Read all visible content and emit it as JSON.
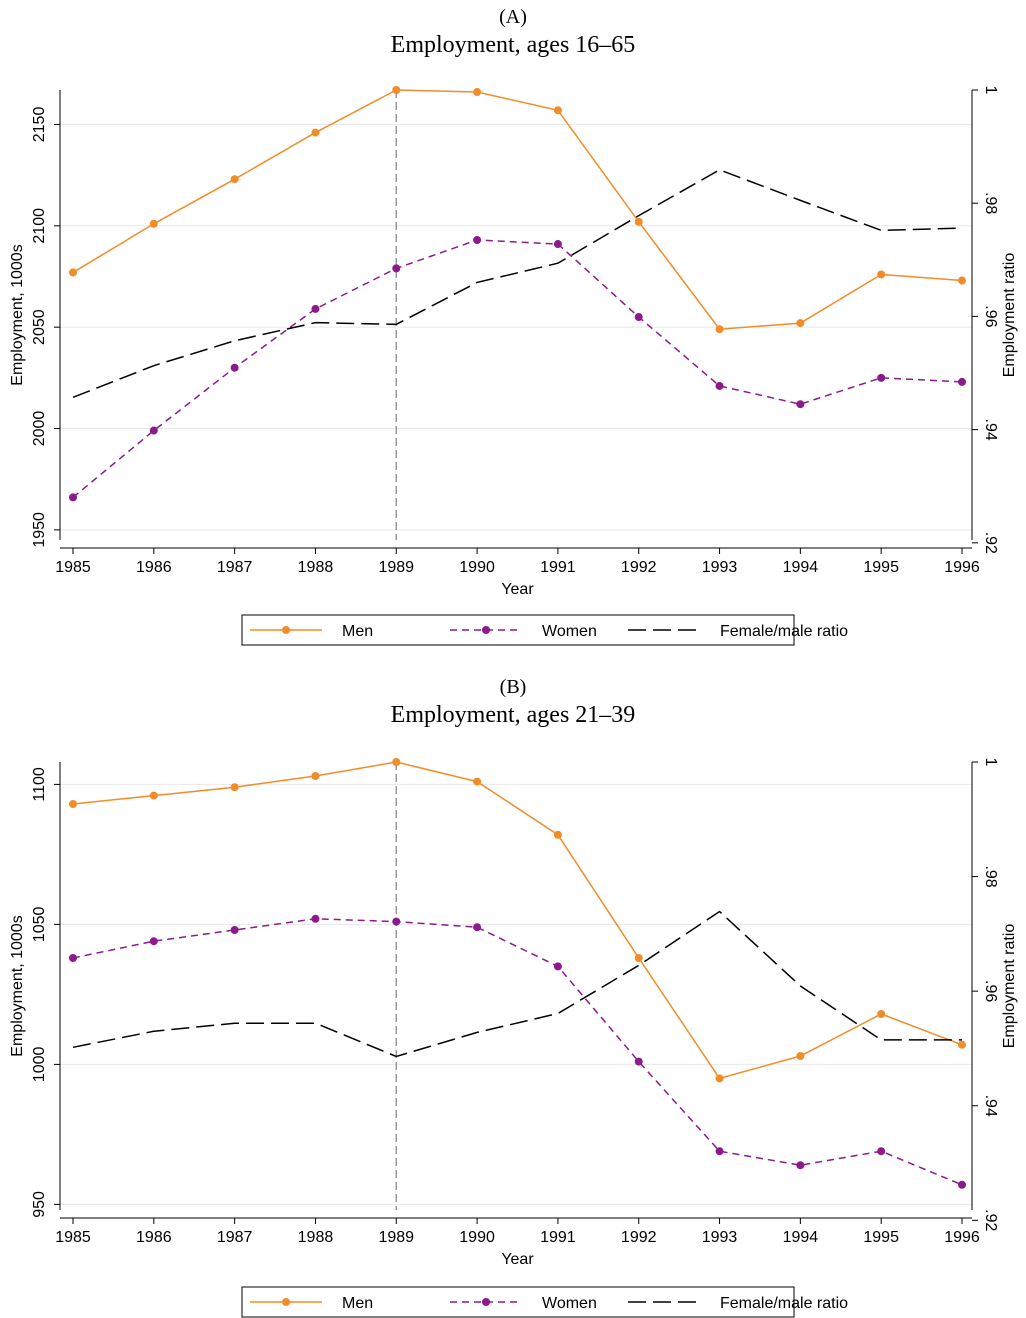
{
  "chart_data": [
    {
      "type": "line",
      "panel_label": "(A)",
      "title": "Employment, ages 16–65",
      "xlabel": "Year",
      "ylabel": "Employment, 1000s",
      "y2label": "Employment ratio",
      "x": [
        1985,
        1986,
        1987,
        1988,
        1989,
        1990,
        1991,
        1992,
        1993,
        1994,
        1995,
        1996
      ],
      "x_tick_labels": [
        "1985",
        "1986",
        "1987",
        "1988",
        "1989",
        "1990",
        "1991",
        "1992",
        "1993",
        "1994",
        "1995",
        "1996"
      ],
      "ylim": [
        1945,
        2167
      ],
      "y_ticks": [
        1950,
        2000,
        2050,
        2100,
        2150
      ],
      "y_tick_labels": [
        "1950",
        "2000",
        "2050",
        "2100",
        "2150"
      ],
      "y2lim": [
        0.9205,
        1.0
      ],
      "y2_ticks": [
        0.92,
        0.94,
        0.96,
        0.98,
        1.0
      ],
      "y2_tick_labels": [
        ".92",
        ".94",
        ".96",
        ".98",
        "1"
      ],
      "vline_x": 1989,
      "grid": true,
      "legend_position": "bottom",
      "series": [
        {
          "name": "Men",
          "axis": "left",
          "style": "solid-markers",
          "color": "#F28C28",
          "values": [
            2077,
            2101,
            2123,
            2146,
            2167,
            2166,
            2157,
            2102,
            2049,
            2052,
            2076,
            2073
          ]
        },
        {
          "name": "Women",
          "axis": "left",
          "style": "dashed-markers",
          "color": "#8B1A8B",
          "values": [
            1966,
            1999,
            2030,
            2059,
            2079,
            2093,
            2091,
            2055,
            2021,
            2012,
            2025,
            2023
          ]
        },
        {
          "name": "Female/male ratio",
          "axis": "right",
          "style": "longdash",
          "color": "#000000",
          "values": [
            0.9457,
            0.9513,
            0.9557,
            0.9589,
            0.9586,
            0.966,
            0.9694,
            0.9778,
            0.9859,
            0.9805,
            0.9752,
            0.9756
          ]
        }
      ]
    },
    {
      "type": "line",
      "panel_label": "(B)",
      "title": "Employment, ages 21–39",
      "xlabel": "Year",
      "ylabel": "Employment, 1000s",
      "y2label": "Employment ratio",
      "x": [
        1985,
        1986,
        1987,
        1988,
        1989,
        1990,
        1991,
        1992,
        1993,
        1994,
        1995,
        1996
      ],
      "x_tick_labels": [
        "1985",
        "1986",
        "1987",
        "1988",
        "1989",
        "1990",
        "1991",
        "1992",
        "1993",
        "1994",
        "1995",
        "1996"
      ],
      "ylim": [
        948,
        1108
      ],
      "y_ticks": [
        950,
        1000,
        1050,
        1100
      ],
      "y_tick_labels": [
        "950",
        "1000",
        "1050",
        "1100"
      ],
      "y2lim": [
        0.9218,
        1.0
      ],
      "y2_ticks": [
        0.92,
        0.94,
        0.96,
        0.98,
        1.0
      ],
      "y2_tick_labels": [
        ".92",
        ".94",
        ".96",
        ".98",
        "1"
      ],
      "vline_x": 1989,
      "grid": true,
      "legend_position": "bottom",
      "series": [
        {
          "name": "Men",
          "axis": "left",
          "style": "solid-markers",
          "color": "#F28C28",
          "values": [
            1093,
            1096,
            1099,
            1103,
            1108,
            1101,
            1082,
            1038,
            995,
            1003,
            1018,
            1007
          ]
        },
        {
          "name": "Women",
          "axis": "left",
          "style": "dashed-markers",
          "color": "#8B1A8B",
          "values": [
            1038,
            1044,
            1048,
            1052,
            1051,
            1049,
            1035,
            1001,
            969,
            964,
            969,
            957
          ]
        },
        {
          "name": "Female/male ratio",
          "axis": "right",
          "style": "longdash",
          "color": "#000000",
          "values": [
            0.9502,
            0.953,
            0.9544,
            0.9544,
            0.9486,
            0.9528,
            0.9561,
            0.9645,
            0.9739,
            0.9609,
            0.9515,
            0.9515
          ]
        }
      ]
    }
  ]
}
